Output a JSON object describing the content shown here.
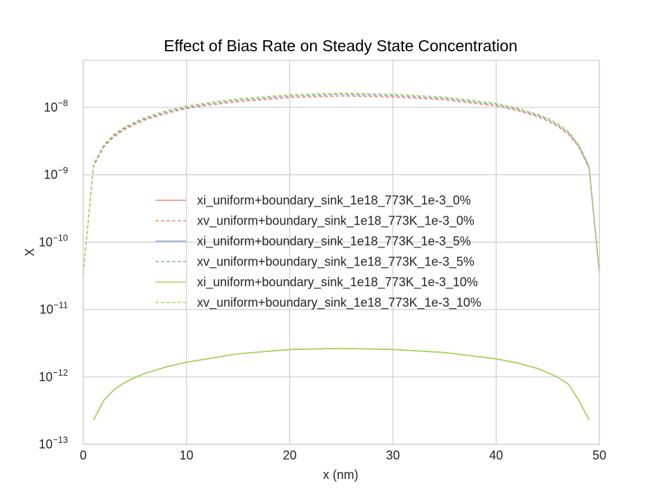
{
  "chart_data": {
    "type": "line",
    "title": "Effect of Bias Rate on Steady State Concentration",
    "xlabel": "x (nm)",
    "ylabel": "X",
    "xlim": [
      0,
      50
    ],
    "ylim": [
      1e-13,
      5e-08
    ],
    "yscale": "log",
    "grid": true,
    "legend_position": "center-left",
    "x_ticks": [
      {
        "value": 0,
        "label": "0"
      },
      {
        "value": 10,
        "label": "10"
      },
      {
        "value": 20,
        "label": "20"
      },
      {
        "value": 30,
        "label": "30"
      },
      {
        "value": 40,
        "label": "40"
      },
      {
        "value": 50,
        "label": "50"
      }
    ],
    "y_ticks": [
      {
        "value": 1e-13,
        "base": "10",
        "exp": "−13"
      },
      {
        "value": 1e-12,
        "base": "10",
        "exp": "−12"
      },
      {
        "value": 1e-11,
        "base": "10",
        "exp": "−11"
      },
      {
        "value": 1e-10,
        "base": "10",
        "exp": "−10"
      },
      {
        "value": 1e-09,
        "base": "10",
        "exp": "−9"
      },
      {
        "value": 1e-08,
        "base": "10",
        "exp": "−8"
      }
    ],
    "x": [
      0,
      1,
      2,
      3,
      4,
      5,
      6,
      8,
      10,
      12,
      15,
      20,
      25,
      30,
      35,
      40,
      42,
      44,
      45,
      46,
      47,
      48,
      49,
      50
    ],
    "series": [
      {
        "name": "xi_uniform+boundary_sink_1e18_773K_1e-3_0%",
        "color": "#f4866a",
        "dash": "solid",
        "values": [
          null,
          2.3e-13,
          4.5e-13,
          6.5e-13,
          8.2e-13,
          9.8e-13,
          1.13e-12,
          1.4e-12,
          1.65e-12,
          1.85e-12,
          2.2e-12,
          2.55e-12,
          2.65e-12,
          2.55e-12,
          2.3e-12,
          1.85e-12,
          1.62e-12,
          1.33e-12,
          1.15e-12,
          9.8e-13,
          7.8e-13,
          4.5e-13,
          2.3e-13,
          null
        ]
      },
      {
        "name": "xv_uniform+boundary_sink_1e18_773K_1e-3_0%",
        "color": "#f4866a",
        "dash": "dashed",
        "values": [
          3.5e-11,
          1.35e-09,
          2.6e-09,
          3.7e-09,
          4.7e-09,
          5.6e-09,
          6.5e-09,
          8.1e-09,
          9.6e-09,
          1.07e-08,
          1.22e-08,
          1.4e-08,
          1.48e-08,
          1.43e-08,
          1.3e-08,
          1.05e-08,
          9e-09,
          7.3e-09,
          6.3e-09,
          5.2e-09,
          4e-09,
          2.6e-09,
          1.25e-09,
          3.5e-11
        ]
      },
      {
        "name": "xi_uniform+boundary_sink_1e18_773K_1e-3_5%",
        "color": "#8da0cb",
        "dash": "solid",
        "values": [
          null,
          2.3e-13,
          4.5e-13,
          6.5e-13,
          8.2e-13,
          9.8e-13,
          1.13e-12,
          1.4e-12,
          1.65e-12,
          1.85e-12,
          2.2e-12,
          2.55e-12,
          2.65e-12,
          2.55e-12,
          2.3e-12,
          1.85e-12,
          1.62e-12,
          1.33e-12,
          1.15e-12,
          9.8e-13,
          7.8e-13,
          4.5e-13,
          2.3e-13,
          null
        ]
      },
      {
        "name": "xv_uniform+boundary_sink_1e18_773K_1e-3_5%",
        "color": "#8da0cb",
        "dash": "dashed",
        "values": [
          3.5e-11,
          1.4e-09,
          2.7e-09,
          3.85e-09,
          4.9e-09,
          5.85e-09,
          6.8e-09,
          8.5e-09,
          1e-08,
          1.12e-08,
          1.28e-08,
          1.47e-08,
          1.56e-08,
          1.5e-08,
          1.36e-08,
          1.1e-08,
          9.4e-09,
          7.6e-09,
          6.6e-09,
          5.4e-09,
          4.2e-09,
          2.7e-09,
          1.3e-09,
          3.5e-11
        ]
      },
      {
        "name": "xi_uniform+boundary_sink_1e18_773K_1e-3_10%",
        "color": "#a6d854",
        "dash": "solid",
        "values": [
          null,
          2.3e-13,
          4.5e-13,
          6.5e-13,
          8.2e-13,
          9.8e-13,
          1.13e-12,
          1.4e-12,
          1.65e-12,
          1.85e-12,
          2.2e-12,
          2.55e-12,
          2.65e-12,
          2.55e-12,
          2.3e-12,
          1.85e-12,
          1.62e-12,
          1.33e-12,
          1.15e-12,
          9.8e-13,
          7.8e-13,
          4.5e-13,
          2.3e-13,
          null
        ]
      },
      {
        "name": "xv_uniform+boundary_sink_1e18_773K_1e-3_10%",
        "color": "#a6d854",
        "dash": "dashed",
        "values": [
          3.5e-11,
          1.45e-09,
          2.8e-09,
          4e-09,
          5.1e-09,
          6.1e-09,
          7.1e-09,
          8.9e-09,
          1.05e-08,
          1.17e-08,
          1.34e-08,
          1.54e-08,
          1.63e-08,
          1.57e-08,
          1.42e-08,
          1.15e-08,
          9.8e-09,
          7.9e-09,
          6.9e-09,
          5.7e-09,
          4.4e-09,
          2.8e-09,
          1.35e-09,
          3.5e-11
        ]
      }
    ]
  }
}
